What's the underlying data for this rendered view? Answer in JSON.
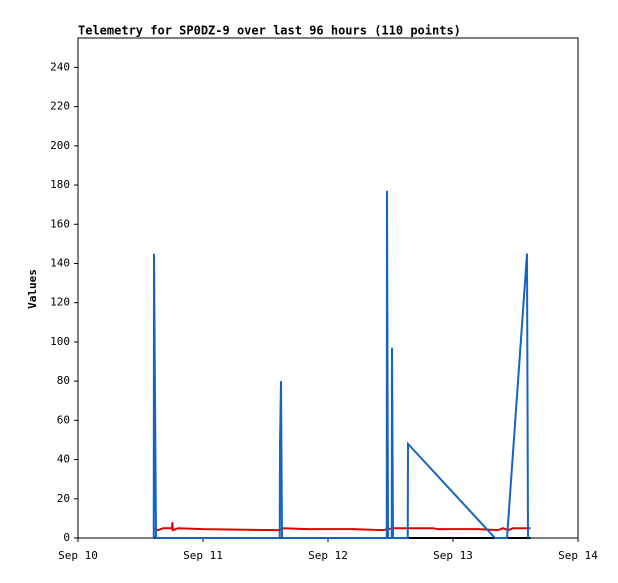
{
  "chart_data": {
    "type": "line",
    "title": "Telemetry for SP0DZ-9 over last 96 hours (110 points)",
    "y_label": "Values",
    "xlim": [
      10,
      14
    ],
    "xticks": [
      {
        "value": 10,
        "label": "Sep 10"
      },
      {
        "value": 11,
        "label": "Sep 11"
      },
      {
        "value": 12,
        "label": "Sep 12"
      },
      {
        "value": 13,
        "label": "Sep 13"
      },
      {
        "value": 14,
        "label": "Sep 14"
      }
    ],
    "ylim": [
      0,
      255
    ],
    "yticks": [
      0,
      20,
      40,
      60,
      80,
      100,
      120,
      140,
      160,
      180,
      200,
      220,
      240
    ],
    "series": [
      {
        "color": "#000000",
        "x": [
          10.608,
          13.62
        ],
        "values": [
          0,
          0
        ]
      },
      {
        "color": "#e00000",
        "x": [
          10.608,
          10.64,
          10.68,
          10.752,
          10.755,
          10.758,
          10.8,
          11.0,
          11.6,
          11.64,
          11.84,
          12.2,
          12.44,
          12.52,
          12.84,
          12.88,
          13.2,
          13.36,
          13.4,
          13.44,
          13.48,
          13.62
        ],
        "values": [
          5,
          4,
          5,
          5,
          8,
          4,
          5,
          4.5,
          4,
          5,
          4.5,
          4.5,
          4,
          5,
          5,
          4.5,
          4.5,
          4,
          5,
          4,
          5,
          5
        ]
      },
      {
        "color": "#1464c0",
        "x": [
          10.606,
          10.608,
          10.616,
          10.624,
          11.614,
          11.616,
          11.624,
          11.632,
          12.47,
          12.472,
          12.48,
          12.51,
          12.512,
          12.52,
          12.638,
          12.64,
          13.336,
          13.432,
          13.592,
          13.6
        ],
        "values": [
          0,
          145,
          72,
          0,
          0,
          48,
          80,
          0,
          0,
          177,
          0,
          0,
          97,
          0,
          0,
          48,
          0,
          0,
          145,
          0
        ]
      }
    ]
  }
}
